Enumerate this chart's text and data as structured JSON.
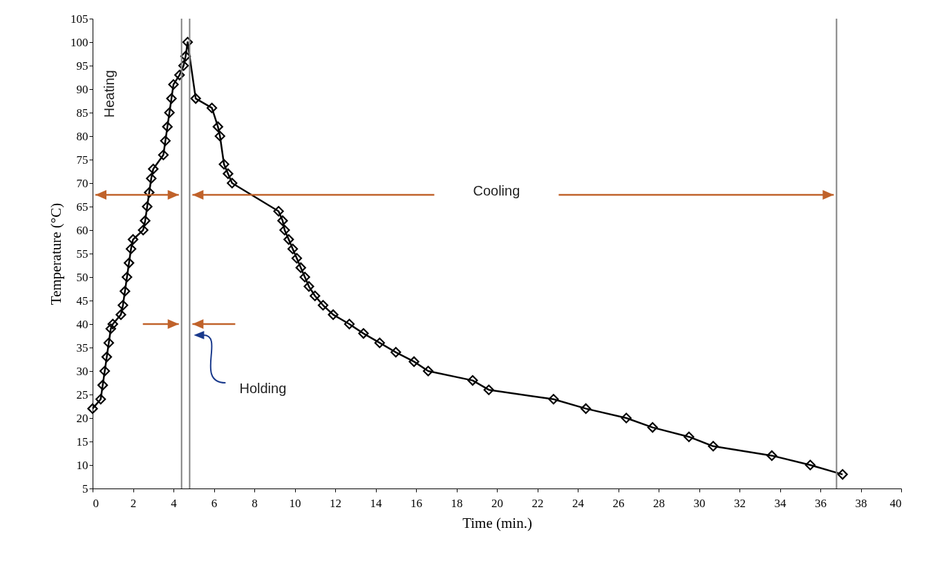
{
  "chart_data": {
    "type": "line",
    "xlabel": "Time (min.)",
    "ylabel": "Temperature (°C)",
    "x": [
      0,
      0.4,
      0.5,
      0.6,
      0.7,
      0.8,
      0.9,
      1.0,
      1.4,
      1.5,
      1.6,
      1.7,
      1.8,
      1.9,
      2.0,
      2.5,
      2.6,
      2.7,
      2.8,
      2.9,
      3.0,
      3.5,
      3.6,
      3.7,
      3.8,
      3.9,
      4.0,
      4.3,
      4.5,
      4.6,
      4.7,
      5.1,
      5.9,
      6.2,
      6.3,
      6.5,
      6.7,
      6.9,
      9.2,
      9.4,
      9.5,
      9.7,
      9.9,
      10.1,
      10.3,
      10.5,
      10.7,
      11.0,
      11.4,
      11.9,
      12.7,
      13.4,
      14.2,
      15.0,
      15.9,
      16.6,
      18.8,
      19.6,
      22.8,
      24.4,
      26.4,
      27.7,
      29.5,
      30.7,
      33.6,
      35.5,
      37.1
    ],
    "series": [
      {
        "color": "#000000",
        "values": [
          22,
          24,
          27,
          30,
          33,
          36,
          39,
          40,
          42,
          44,
          47,
          50,
          53,
          56,
          58,
          60,
          62,
          65,
          68,
          71,
          73,
          76,
          79,
          82,
          85,
          88,
          91,
          93,
          95,
          97,
          100,
          88,
          86,
          82,
          80,
          74,
          72,
          70,
          64,
          62,
          60,
          58,
          56,
          54,
          52,
          50,
          48,
          46,
          44,
          42,
          40,
          38,
          36,
          34,
          32,
          30,
          28,
          26,
          24,
          22,
          20,
          18,
          16,
          14,
          12,
          10,
          8
        ]
      }
    ],
    "xlim": [
      0,
      40
    ],
    "xticks": [
      0,
      2,
      4,
      6,
      8,
      10,
      12,
      14,
      16,
      18,
      20,
      22,
      24,
      26,
      28,
      30,
      32,
      34,
      36,
      38,
      40
    ],
    "ylim": [
      5,
      105
    ],
    "yticks": [
      5,
      10,
      15,
      20,
      25,
      30,
      35,
      40,
      45,
      50,
      55,
      60,
      65,
      70,
      75,
      80,
      85,
      90,
      95,
      100,
      105
    ],
    "marker": "diamond",
    "line_style": "solid",
    "grid": false,
    "legend": false,
    "ref_lines": [
      {
        "axis": "x",
        "value": 4.4,
        "color": "#808080"
      },
      {
        "axis": "x",
        "value": 4.8,
        "color": "#808080"
      },
      {
        "axis": "x",
        "value": 36.8,
        "color": "#808080"
      }
    ],
    "annotations": [
      "Heating",
      "Cooling",
      "Holding"
    ]
  }
}
